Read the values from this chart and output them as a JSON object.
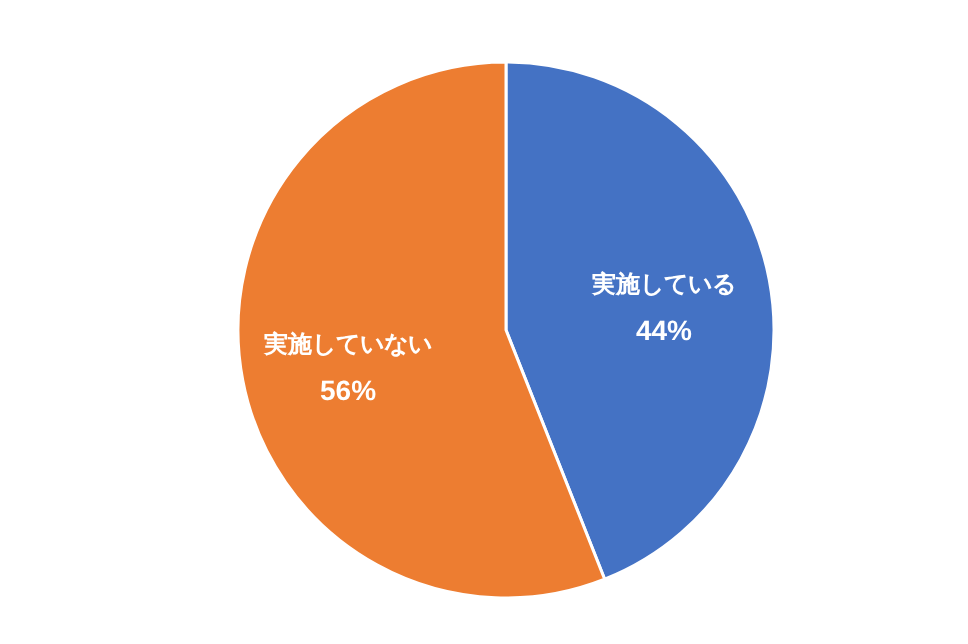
{
  "chart_data": {
    "type": "pie",
    "categories": [
      "実施している",
      "実施していない"
    ],
    "values": [
      44,
      56
    ],
    "colors": [
      "#4472c4",
      "#ed7d31"
    ],
    "value_labels": [
      "44%",
      "56%"
    ],
    "legend": false
  }
}
